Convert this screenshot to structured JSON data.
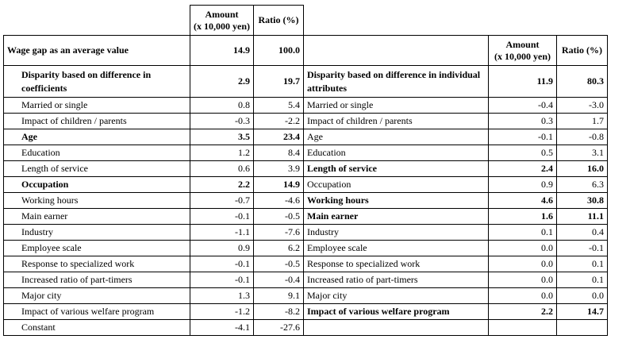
{
  "header": {
    "amount_label": "Amount",
    "amount_unit": "(x 10,000 yen)",
    "ratio_label": "Ratio (%)"
  },
  "wage_gap": {
    "label": "Wage gap as an average value",
    "amount": "14.9",
    "ratio": "100.0"
  },
  "coefficients": {
    "heading": "Disparity based on difference in coefficients",
    "amount": "2.9",
    "ratio": "19.7",
    "rows": [
      {
        "label": "Married or single",
        "amount": "0.8",
        "ratio": "5.4",
        "bold": false
      },
      {
        "label": "Impact of children / parents",
        "amount": "-0.3",
        "ratio": "-2.2",
        "bold": false
      },
      {
        "label": "Age",
        "amount": "3.5",
        "ratio": "23.4",
        "bold": true
      },
      {
        "label": "Education",
        "amount": "1.2",
        "ratio": "8.4",
        "bold": false
      },
      {
        "label": "Length of service",
        "amount": "0.6",
        "ratio": "3.9",
        "bold": false
      },
      {
        "label": "Occupation",
        "amount": "2.2",
        "ratio": "14.9",
        "bold": true
      },
      {
        "label": "Working hours",
        "amount": "-0.7",
        "ratio": "-4.6",
        "bold": false
      },
      {
        "label": "Main earner",
        "amount": "-0.1",
        "ratio": "-0.5",
        "bold": false
      },
      {
        "label": "Industry",
        "amount": "-1.1",
        "ratio": "-7.6",
        "bold": false
      },
      {
        "label": "Employee scale",
        "amount": "0.9",
        "ratio": "6.2",
        "bold": false
      },
      {
        "label": "Response to specialized work",
        "amount": "-0.1",
        "ratio": "-0.5",
        "bold": false
      },
      {
        "label": "Increased ratio of part-timers",
        "amount": "-0.1",
        "ratio": "-0.4",
        "bold": false
      },
      {
        "label": "Major city",
        "amount": "1.3",
        "ratio": "9.1",
        "bold": false
      },
      {
        "label": "Impact of various welfare program",
        "amount": "-1.2",
        "ratio": "-8.2",
        "bold": false
      },
      {
        "label": "Constant",
        "amount": "-4.1",
        "ratio": "-27.6",
        "bold": false
      }
    ]
  },
  "attributes": {
    "heading": "Disparity based on difference in individual attributes",
    "amount": "11.9",
    "ratio": "80.3",
    "rows": [
      {
        "label": "Married or single",
        "amount": "-0.4",
        "ratio": "-3.0",
        "bold": false
      },
      {
        "label": "Impact of children / parents",
        "amount": "0.3",
        "ratio": "1.7",
        "bold": false
      },
      {
        "label": "Age",
        "amount": "-0.1",
        "ratio": "-0.8",
        "bold": false
      },
      {
        "label": "Education",
        "amount": "0.5",
        "ratio": "3.1",
        "bold": false
      },
      {
        "label": "Length of service",
        "amount": "2.4",
        "ratio": "16.0",
        "bold": true
      },
      {
        "label": "Occupation",
        "amount": "0.9",
        "ratio": "6.3",
        "bold": false
      },
      {
        "label": "Working hours",
        "amount": "4.6",
        "ratio": "30.8",
        "bold": true
      },
      {
        "label": "Main earner",
        "amount": "1.6",
        "ratio": "11.1",
        "bold": true
      },
      {
        "label": "Industry",
        "amount": "0.1",
        "ratio": "0.4",
        "bold": false
      },
      {
        "label": "Employee scale",
        "amount": "0.0",
        "ratio": "-0.1",
        "bold": false
      },
      {
        "label": "Response to specialized work",
        "amount": "0.0",
        "ratio": "0.1",
        "bold": false
      },
      {
        "label": "Increased ratio of part-timers",
        "amount": "0.0",
        "ratio": "0.1",
        "bold": false
      },
      {
        "label": "Major city",
        "amount": "0.0",
        "ratio": "0.0",
        "bold": false
      },
      {
        "label": "Impact of various welfare program",
        "amount": "2.2",
        "ratio": "14.7",
        "bold": true
      }
    ]
  }
}
